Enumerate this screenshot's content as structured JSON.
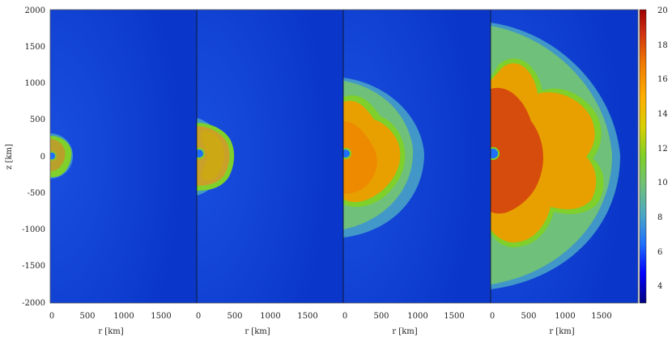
{
  "figure": {
    "ylabel": "z [km]",
    "xlabel": "r [km]",
    "y_ticks": [
      "2000",
      "1500",
      "1000",
      "500",
      "0",
      "-500",
      "-1000",
      "-1500",
      "-2000"
    ],
    "x_ticks": [
      "0",
      "500",
      "1000",
      "1500"
    ],
    "colorbar_ticks": [
      "20",
      "18",
      "16",
      "14",
      "12",
      "10",
      "8",
      "6",
      "4"
    ],
    "colorbar_range": [
      3,
      20
    ],
    "colorbar_colors": [
      "#00007f",
      "#0000ff",
      "#1e6fff",
      "#4aa7c6",
      "#6fc07a",
      "#7fd02a",
      "#d8d000",
      "#ffb000",
      "#f07800",
      "#d03010",
      "#a00000"
    ],
    "background_color": "#0a37c9",
    "panels": [
      {
        "id": "panel-1",
        "shock_radius_km": 280
      },
      {
        "id": "panel-2",
        "shock_radius_km": 520
      },
      {
        "id": "panel-3",
        "shock_radius_km": 1050
      },
      {
        "id": "panel-4",
        "shock_radius_km": 1800
      }
    ]
  }
}
